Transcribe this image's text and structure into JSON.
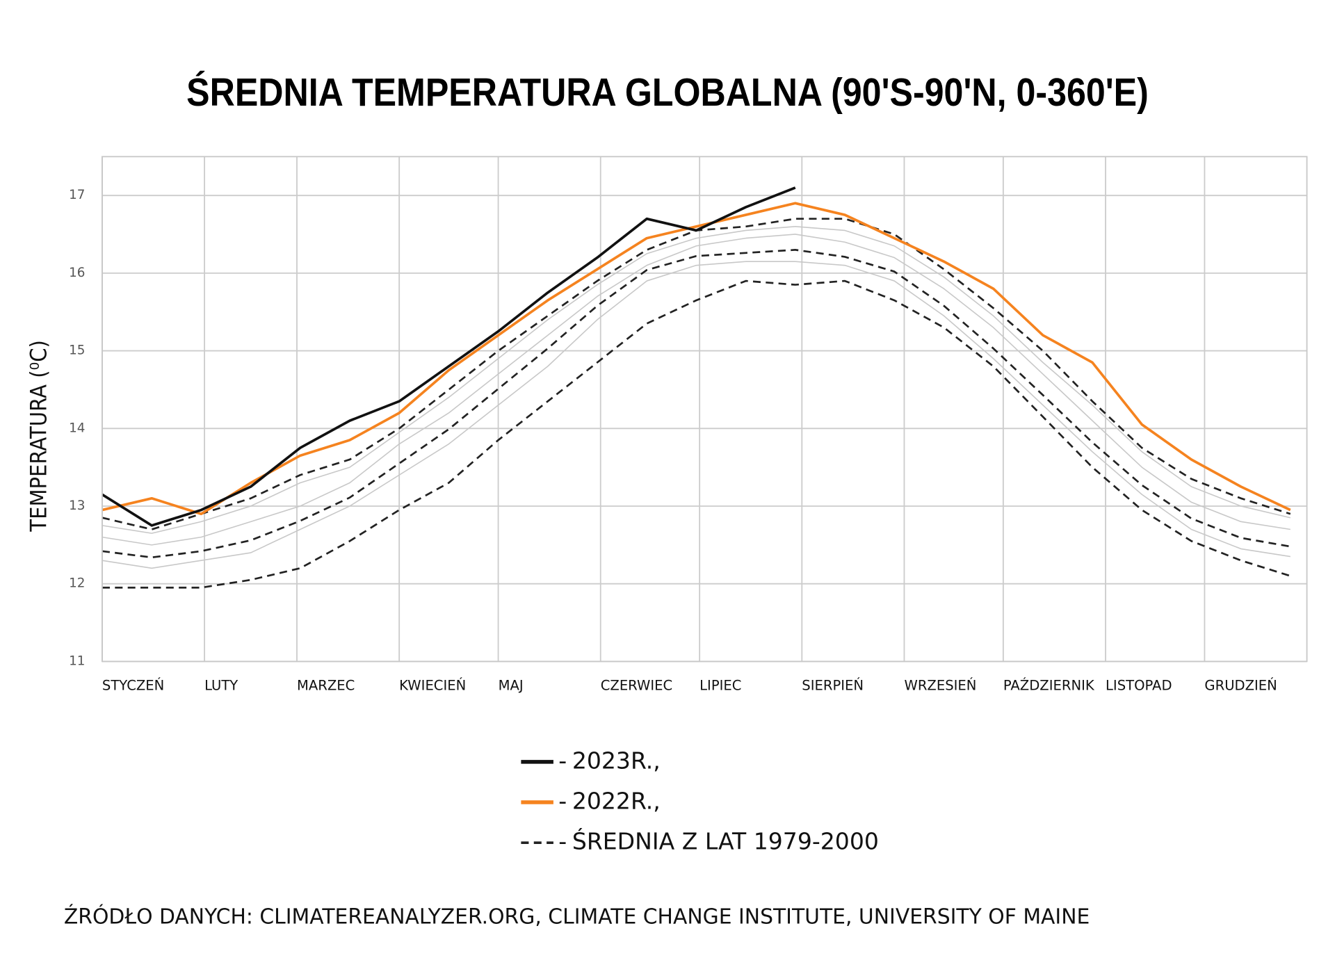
{
  "chart_data": {
    "type": "line",
    "title": "ŚREDNIA TEMPERATURA GLOBALNA (90'S-90'N, 0-360'E)",
    "y_label": "TEMPERATURA (⁰C)",
    "source": "ŹRÓDŁO DANYCH: CLIMATEREANALYZER.ORG, CLIMATE CHANGE INSTITUTE, UNIVERSITY OF MAINE",
    "x": [
      0,
      15,
      30,
      45,
      60,
      75,
      90,
      105,
      120,
      135,
      150,
      165,
      180,
      195,
      210,
      225,
      240,
      255,
      270,
      285,
      300,
      315,
      330,
      345,
      360
    ],
    "xlim": [
      0,
      365
    ],
    "xticks": [
      {
        "value": 0,
        "label": "STYCZEŃ"
      },
      {
        "value": 31,
        "label": "LUTY"
      },
      {
        "value": 59,
        "label": "MARZEC"
      },
      {
        "value": 90,
        "label": "KWIECIEŃ"
      },
      {
        "value": 120,
        "label": "MAJ"
      },
      {
        "value": 151,
        "label": "CZERWIEC"
      },
      {
        "value": 181,
        "label": "LIPIEC"
      },
      {
        "value": 212,
        "label": "SIERPIEŃ"
      },
      {
        "value": 243,
        "label": "WRZESIEŃ"
      },
      {
        "value": 273,
        "label": "PAŹDZIERNIK"
      },
      {
        "value": 304,
        "label": "LISTOPAD"
      },
      {
        "value": 334,
        "label": "GRUDZIEŃ"
      }
    ],
    "ylim": [
      11,
      17.5
    ],
    "yticks": [
      11,
      12,
      13,
      14,
      15,
      16,
      17
    ],
    "grid": true,
    "legend": "bottom",
    "series": [
      {
        "name": "2023R.,",
        "color": "#111111",
        "dash": false,
        "values": [
          13.15,
          12.75,
          12.95,
          13.25,
          13.75,
          14.1,
          14.35,
          14.8,
          15.25,
          15.75,
          16.2,
          16.7,
          16.55,
          16.85,
          17.1,
          null,
          null,
          null,
          null,
          null,
          null,
          null,
          null,
          null,
          null
        ]
      },
      {
        "name": "2022R.,",
        "color": "#f5831f",
        "dash": false,
        "values": [
          12.95,
          13.1,
          12.9,
          13.3,
          13.65,
          13.85,
          14.2,
          14.75,
          15.2,
          15.65,
          16.05,
          16.45,
          16.6,
          16.75,
          16.9,
          16.75,
          16.45,
          16.15,
          15.8,
          15.2,
          14.85,
          14.05,
          13.6,
          13.25,
          12.95
        ]
      },
      {
        "name": "ŚREDNIA Z LAT 1979-2000",
        "color": "#222222",
        "dash": true,
        "values": [
          12.42,
          12.34,
          12.42,
          12.56,
          12.81,
          13.11,
          13.55,
          13.99,
          14.51,
          15.03,
          15.58,
          16.04,
          16.22,
          16.26,
          16.3,
          16.21,
          16.02,
          15.58,
          15.03,
          14.43,
          13.82,
          13.27,
          12.84,
          12.59,
          12.48
        ]
      },
      {
        "color": "#222222",
        "dash": true,
        "values": [
          12.85,
          12.7,
          12.9,
          13.1,
          13.4,
          13.6,
          14.0,
          14.5,
          15.0,
          15.45,
          15.9,
          16.3,
          16.55,
          16.6,
          16.7,
          16.7,
          16.5,
          16.05,
          15.55,
          15.0,
          14.35,
          13.75,
          13.35,
          13.1,
          12.9
        ]
      },
      {
        "color": "#222222",
        "dash": true,
        "values": [
          11.95,
          11.95,
          11.95,
          12.05,
          12.2,
          12.55,
          12.95,
          13.3,
          13.85,
          14.35,
          14.85,
          15.35,
          15.65,
          15.9,
          15.85,
          15.9,
          15.65,
          15.3,
          14.8,
          14.15,
          13.5,
          12.95,
          12.55,
          12.3,
          12.1
        ]
      },
      {
        "color": "#c8c8c8",
        "dash": false,
        "values": [
          12.6,
          12.5,
          12.6,
          12.8,
          13.0,
          13.3,
          13.8,
          14.2,
          14.7,
          15.2,
          15.7,
          16.1,
          16.35,
          16.45,
          16.5,
          16.4,
          16.2,
          15.8,
          15.3,
          14.7,
          14.1,
          13.5,
          13.05,
          12.8,
          12.7
        ]
      },
      {
        "color": "#c8c8c8",
        "dash": false,
        "values": [
          12.3,
          12.2,
          12.3,
          12.4,
          12.7,
          13.0,
          13.4,
          13.8,
          14.3,
          14.8,
          15.4,
          15.9,
          16.1,
          16.15,
          16.15,
          16.1,
          15.9,
          15.45,
          14.9,
          14.3,
          13.7,
          13.15,
          12.7,
          12.45,
          12.35
        ]
      },
      {
        "color": "#c8c8c8",
        "dash": false,
        "values": [
          12.75,
          12.65,
          12.8,
          13.0,
          13.3,
          13.5,
          13.95,
          14.4,
          14.9,
          15.4,
          15.85,
          16.25,
          16.45,
          16.55,
          16.6,
          16.55,
          16.35,
          15.95,
          15.45,
          14.85,
          14.3,
          13.7,
          13.25,
          13.0,
          12.85
        ]
      }
    ]
  }
}
